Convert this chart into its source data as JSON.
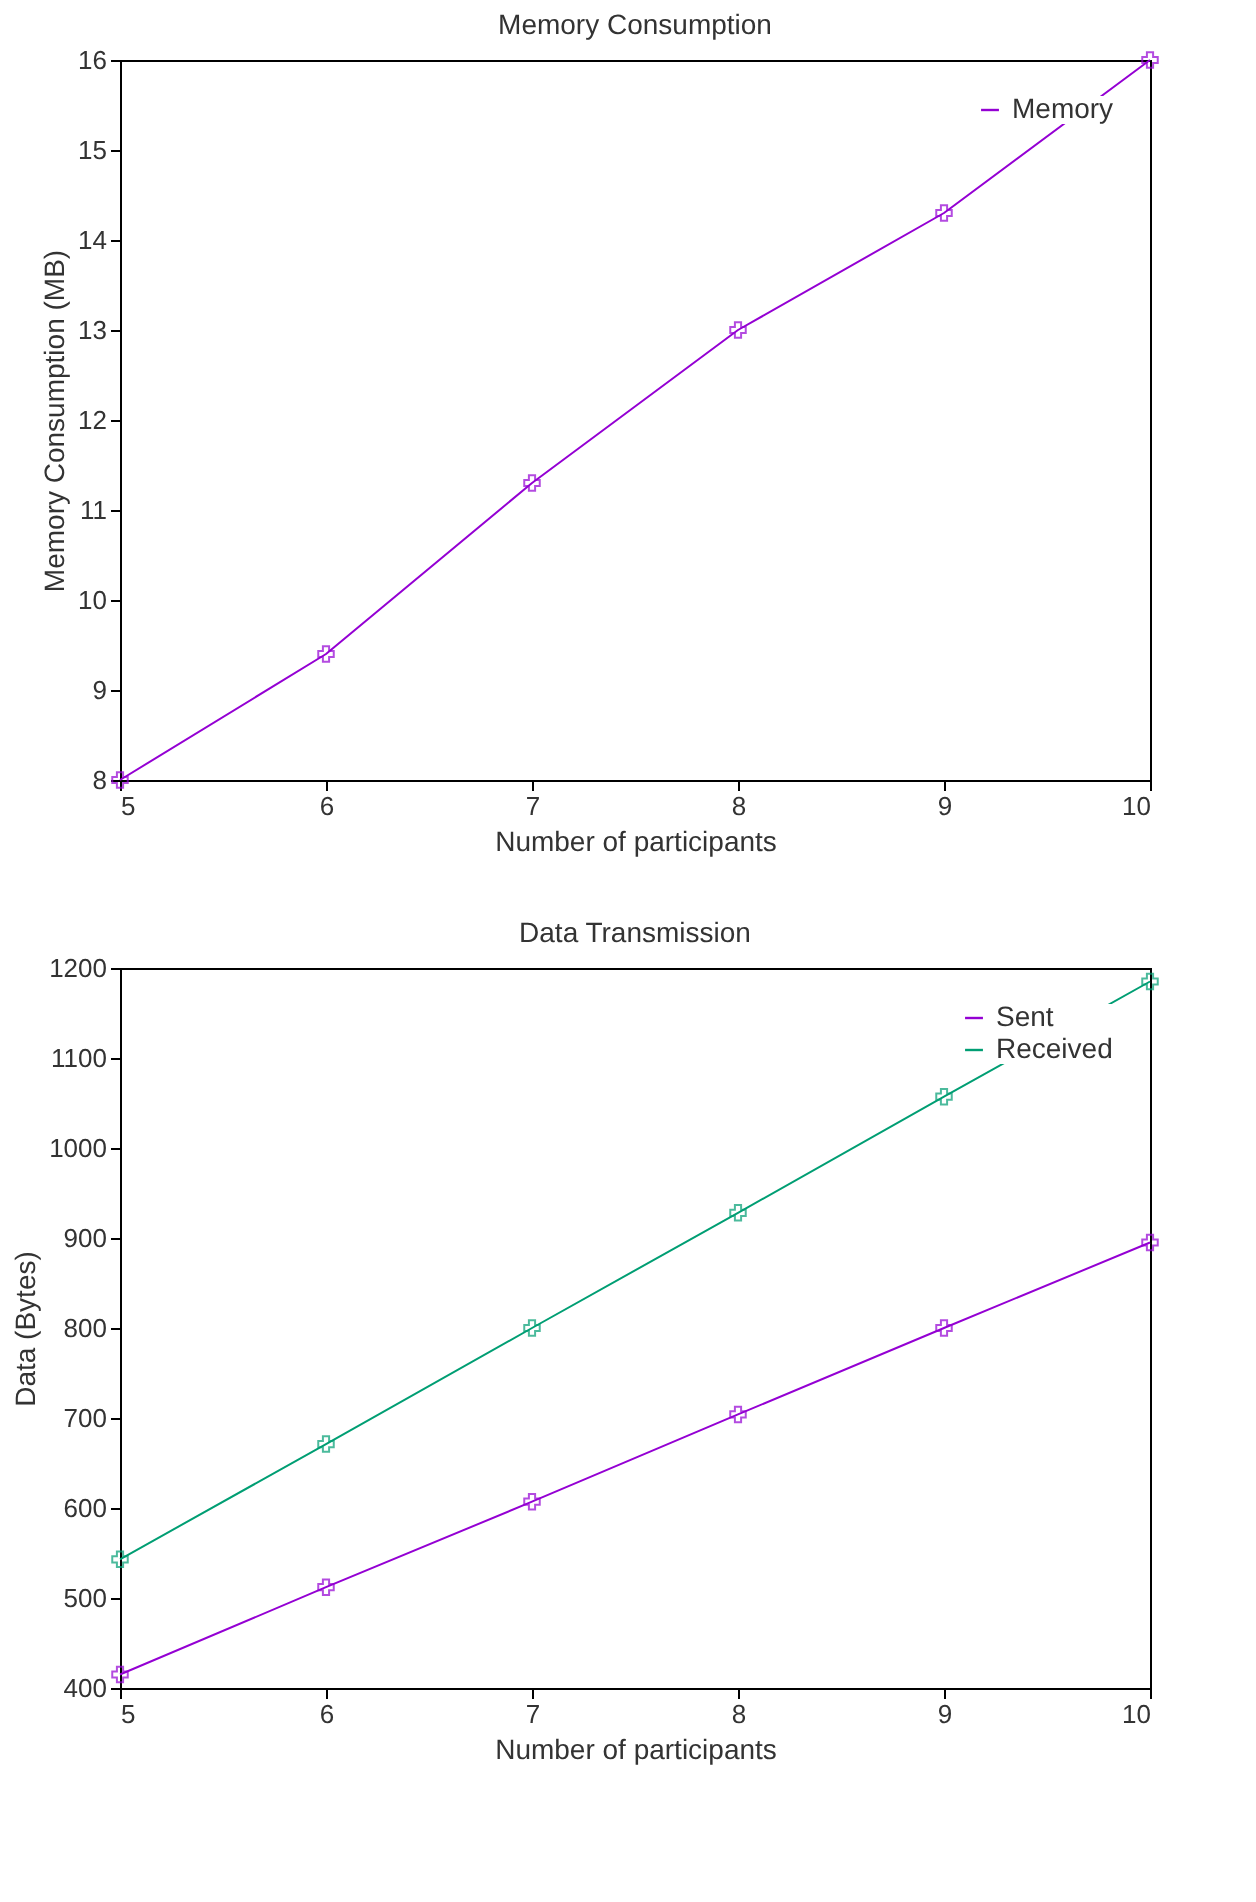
{
  "chart_data": [
    {
      "type": "line",
      "title": "Memory Consumption",
      "xlabel": "Number of participants",
      "ylabel": "Memory Consumption (MB)",
      "x": [
        5,
        6,
        7,
        8,
        9,
        10
      ],
      "xlim": [
        5,
        10
      ],
      "xticks": [
        5,
        6,
        7,
        8,
        9,
        10
      ],
      "ylim": [
        8,
        16
      ],
      "yticks": [
        8,
        9,
        10,
        11,
        12,
        13,
        14,
        15,
        16
      ],
      "grid": false,
      "legend": "top right",
      "marker": "cross",
      "line_style": "solid",
      "series": [
        {
          "name": "Memory",
          "color": "#9400d3",
          "values": [
            8,
            9.4,
            11.3,
            13,
            14.3,
            16
          ]
        }
      ]
    },
    {
      "type": "line",
      "title": "Data Transmission",
      "xlabel": "Number of participants",
      "ylabel": "Data (Bytes)",
      "x": [
        5,
        6,
        7,
        8,
        9,
        10
      ],
      "xlim": [
        5,
        10
      ],
      "xticks": [
        5,
        6,
        7,
        8,
        9,
        10
      ],
      "ylim": [
        400,
        1200
      ],
      "yticks": [
        400,
        500,
        600,
        700,
        800,
        900,
        1000,
        1100,
        1200
      ],
      "grid": false,
      "legend": "top right",
      "marker": "cross",
      "line_style": "solid",
      "series": [
        {
          "name": "Sent",
          "color": "#9400d3",
          "values": [
            415,
            512,
            607,
            704,
            800,
            895
          ]
        },
        {
          "name": "Received",
          "color": "#009e73",
          "values": [
            543,
            671,
            800,
            928,
            1057,
            1185
          ]
        }
      ]
    }
  ]
}
